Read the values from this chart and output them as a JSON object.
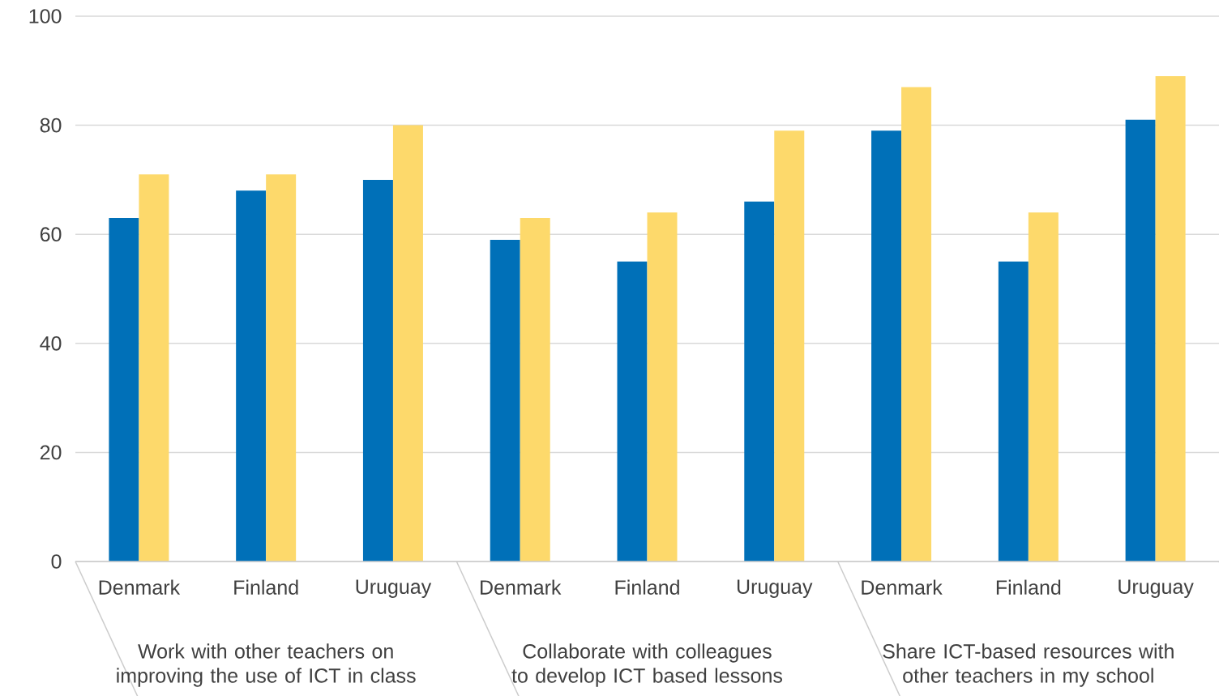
{
  "chart_data": {
    "type": "bar",
    "categories": [
      "Denmark",
      "Finland",
      "Uruguay",
      "Denmark",
      "Finland",
      "Uruguay",
      "Denmark",
      "Finland",
      "Uruguay"
    ],
    "series": [
      {
        "color": "#0070b8",
        "values": [
          63,
          68,
          70,
          59,
          55,
          66,
          79,
          55,
          81
        ]
      },
      {
        "color": "#fdd96b",
        "values": [
          71,
          71,
          80,
          63,
          64,
          79,
          87,
          64,
          89
        ]
      }
    ],
    "ylim": [
      0,
      100
    ],
    "yticks": [
      0,
      20,
      40,
      60,
      80,
      100
    ],
    "grid": "y",
    "annotations": [
      "Work with other teachers on improving the use of ICT in class",
      "Collaborate with colleagues to develop ICT based lessons",
      "Share ICT-based resources with other teachers in my school"
    ]
  }
}
